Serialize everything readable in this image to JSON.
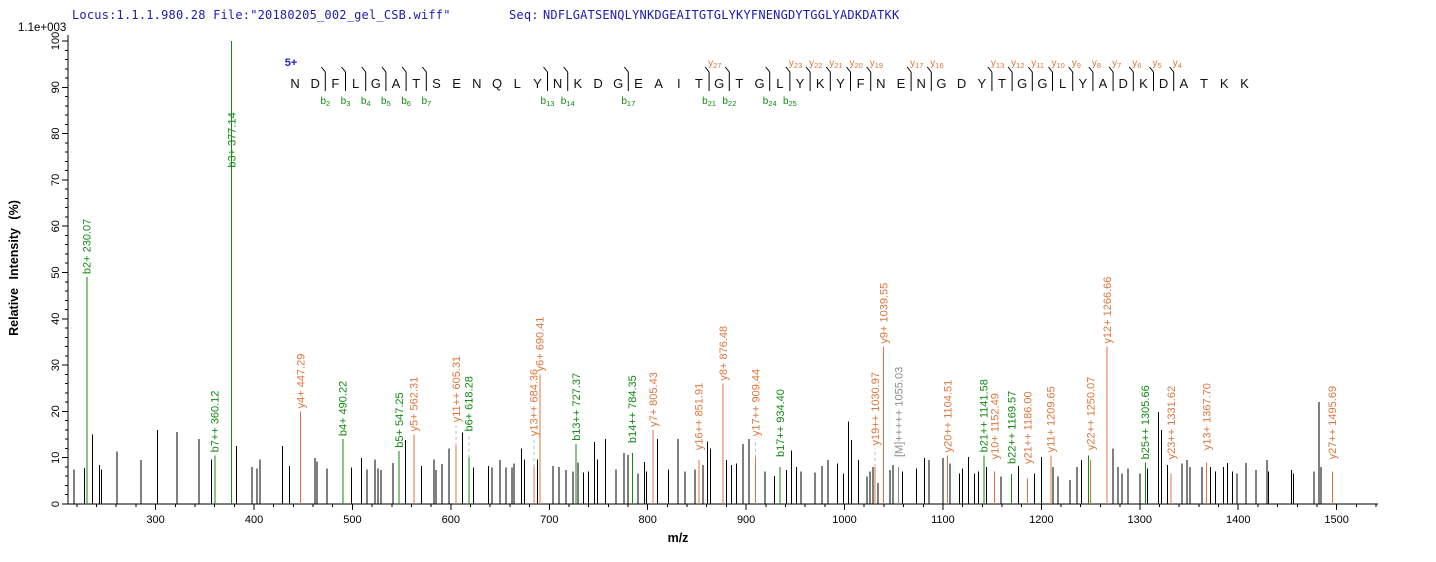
{
  "header": {
    "locus_file": "Locus:1.1.1.980.28 File:\"20180205_002_gel_CSB.wiff\"",
    "seq_label": "Seq:",
    "sequence": "NDFLGATSENQLYNKDGEAITGTGLYKYFNENGDYTGGLYADKDATKK"
  },
  "colors": {
    "b_ion": "#118A11",
    "y_ion": "#E0763C",
    "neutral_label": "#8C8C8C",
    "header_text": "#1C1CB4",
    "precursor": "#2222CC",
    "axis": "#000000",
    "dashed_pointer": "#BDBDBD",
    "peak_black": "#000000",
    "sequence_text": "#111111"
  },
  "chart_data": {
    "type": "bar",
    "variant": "centroid MS/MS mass spectrum (stick plot)",
    "title": "",
    "xlabel": "m/z",
    "ylabel": "Relative  Intensity  (%)",
    "y_scale_note": "1.1e+003",
    "xlim": [
      211,
      1540
    ],
    "ylim": [
      0,
      100
    ],
    "x_ticks": [
      300,
      400,
      500,
      600,
      700,
      800,
      900,
      1000,
      1100,
      1200,
      1300,
      1400,
      1500
    ],
    "x_minor_step": 20,
    "y_ticks": [
      0,
      10,
      20,
      30,
      40,
      50,
      60,
      70,
      80,
      90,
      100
    ],
    "y_minor_step": 2,
    "grid": false,
    "precursor_charge": "5+",
    "peptide": {
      "sequence": "NDFLGATSENQLYNKDGEAITGTGLYKYFNENGDYTGGLYADKDATKK",
      "b_ions": [
        2,
        3,
        4,
        5,
        6,
        7,
        13,
        14,
        17,
        21,
        22,
        24,
        25
      ],
      "y_ions": [
        4,
        5,
        6,
        7,
        8,
        9,
        10,
        11,
        12,
        13,
        16,
        17,
        19,
        20,
        21,
        22,
        23,
        27
      ]
    },
    "labeled_peaks": [
      {
        "mz": 230.07,
        "h": 49,
        "label": "b2+ 230.07",
        "type": "b"
      },
      {
        "mz": 360.12,
        "h": 10.5,
        "label": "b7++ 360.12",
        "type": "b"
      },
      {
        "mz": 377.14,
        "h": 100,
        "label": "b3+ 377.14",
        "type": "b",
        "label_h": 72
      },
      {
        "mz": 447.29,
        "h": 20,
        "label": "y4+ 447.29",
        "type": "y"
      },
      {
        "mz": 490.22,
        "h": 14,
        "label": "b4+ 490.22",
        "type": "b"
      },
      {
        "mz": 547.25,
        "h": 11.5,
        "label": "b5+ 547.25",
        "type": "b"
      },
      {
        "mz": 562.31,
        "h": 15,
        "label": "y5+ 562.31",
        "type": "y"
      },
      {
        "mz": 605.31,
        "h": 12.5,
        "label": "y11++ 605.31",
        "type": "y",
        "label_h": 17,
        "dashed": true
      },
      {
        "mz": 618.28,
        "h": 10,
        "label": "b6+ 618.28",
        "type": "b",
        "label_h": 15,
        "dashed": true
      },
      {
        "mz": 684.36,
        "h": 8,
        "label": "y13++ 684.36",
        "type": "y",
        "label_h": 14,
        "dashed": true
      },
      {
        "mz": 690.41,
        "h": 28,
        "label": "y6+ 690.41",
        "type": "y"
      },
      {
        "mz": 727.37,
        "h": 13,
        "label": "b13++ 727.37",
        "type": "b"
      },
      {
        "mz": 784.35,
        "h": 11,
        "label": "b14++ 784.35",
        "type": "b",
        "label_h": 12.5
      },
      {
        "mz": 805.43,
        "h": 16,
        "label": "y7+ 805.43",
        "type": "y"
      },
      {
        "mz": 851.91,
        "h": 9.5,
        "label": "y16++ 851.91",
        "type": "y",
        "label_h": 11
      },
      {
        "mz": 876.48,
        "h": 26,
        "label": "y8+ 876.48",
        "type": "y"
      },
      {
        "mz": 909.44,
        "h": 10,
        "label": "y17++ 909.44",
        "type": "y",
        "label_h": 14,
        "dashed": true
      },
      {
        "mz": 934.4,
        "h": 8,
        "label": "b17++ 934.40",
        "type": "b",
        "label_h": 9.5
      },
      {
        "mz": 1030.97,
        "h": 8,
        "label": "y19++ 1030.97",
        "type": "y",
        "label_h": 12,
        "dashed": true
      },
      {
        "mz": 1039.55,
        "h": 34,
        "label": "y9+ 1039.55",
        "type": "y"
      },
      {
        "mz": 1055.03,
        "h": 8,
        "label": "[M]+++++ 1055.03",
        "type": "M",
        "label_h": 9.5
      },
      {
        "mz": 1104.51,
        "h": 10.5,
        "label": "y20++ 1104.51",
        "type": "y"
      },
      {
        "mz": 1141.58,
        "h": 10.5,
        "label": "b21++ 1141.58",
        "type": "b"
      },
      {
        "mz": 1152.49,
        "h": 7,
        "label": "y10+ 1152.49",
        "type": "y",
        "label_h": 9
      },
      {
        "mz": 1169.57,
        "h": 6.5,
        "label": "b22++ 1169.57",
        "type": "b",
        "label_h": 8
      },
      {
        "mz": 1186.0,
        "h": 5.5,
        "label": "y21++ 1186.00",
        "type": "y",
        "label_h": 8
      },
      {
        "mz": 1209.65,
        "h": 10.5,
        "label": "y11+ 1209.65",
        "type": "y"
      },
      {
        "mz": 1248.0,
        "h": 10.5,
        "label": "",
        "type": "b"
      },
      {
        "mz": 1250.07,
        "h": 9.5,
        "label": "y22++ 1250.07",
        "type": "y",
        "label_h": 11
      },
      {
        "mz": 1266.66,
        "h": 34,
        "label": "y12+ 1266.66",
        "type": "y"
      },
      {
        "mz": 1305.66,
        "h": 9,
        "label": "b25++ 1305.66",
        "type": "b"
      },
      {
        "mz": 1331.62,
        "h": 6.6,
        "label": "y23++ 1331.62",
        "type": "y",
        "label_h": 9
      },
      {
        "mz": 1367.7,
        "h": 9,
        "label": "y13+ 1367.70",
        "type": "y",
        "label_h": 11
      },
      {
        "mz": 1495.69,
        "h": 7,
        "label": "y27++ 1495.69",
        "type": "y",
        "label_h": 9
      }
    ],
    "unlabeled_peaks": [
      [
        217,
        7.5
      ],
      [
        228,
        7.8
      ],
      [
        236,
        15
      ],
      [
        243,
        8.4
      ],
      [
        245,
        7.5
      ],
      [
        261,
        11.3
      ],
      [
        285,
        9.5
      ],
      [
        302,
        16
      ],
      [
        322,
        15.5
      ],
      [
        344,
        14
      ],
      [
        357,
        9.6
      ],
      [
        382,
        12.5
      ],
      [
        398,
        8
      ],
      [
        403,
        7.7
      ],
      [
        406,
        9.6
      ],
      [
        429,
        12.5
      ],
      [
        436,
        8.2
      ],
      [
        462,
        9.9
      ],
      [
        464,
        9.2
      ],
      [
        474,
        7.7
      ],
      [
        499,
        7.9
      ],
      [
        509,
        9.9
      ],
      [
        515,
        7.5
      ],
      [
        523,
        9.6
      ],
      [
        526,
        7.7
      ],
      [
        529,
        7.3
      ],
      [
        541,
        8.9
      ],
      [
        554,
        13.8
      ],
      [
        570,
        8.2
      ],
      [
        583,
        9.6
      ],
      [
        585,
        7.3
      ],
      [
        591,
        8.6
      ],
      [
        598,
        12
      ],
      [
        612,
        15.4
      ],
      [
        623,
        7.9
      ],
      [
        638,
        8.2
      ],
      [
        642,
        7.9
      ],
      [
        650,
        9.5
      ],
      [
        656,
        7.9
      ],
      [
        662,
        7.9
      ],
      [
        664,
        8.8
      ],
      [
        672,
        12
      ],
      [
        675,
        9.6
      ],
      [
        688,
        9.6
      ],
      [
        704,
        8.2
      ],
      [
        710,
        8
      ],
      [
        717,
        7.3
      ],
      [
        724,
        7
      ],
      [
        729,
        9
      ],
      [
        735,
        6.8
      ],
      [
        740,
        7
      ],
      [
        746,
        13.4
      ],
      [
        749,
        9.6
      ],
      [
        757,
        14
      ],
      [
        768,
        7.5
      ],
      [
        776,
        11
      ],
      [
        780,
        10.6
      ],
      [
        790,
        6.6
      ],
      [
        797,
        9.1
      ],
      [
        799,
        7
      ],
      [
        810,
        14
      ],
      [
        821,
        7.5
      ],
      [
        831,
        14
      ],
      [
        838,
        7
      ],
      [
        848,
        7.4
      ],
      [
        856,
        8.4
      ],
      [
        861,
        13.5
      ],
      [
        864,
        12
      ],
      [
        880,
        9.5
      ],
      [
        885,
        8.4
      ],
      [
        890,
        8.8
      ],
      [
        897,
        13
      ],
      [
        903,
        14
      ],
      [
        919,
        7
      ],
      [
        929,
        6
      ],
      [
        941,
        7.3
      ],
      [
        946,
        11.6
      ],
      [
        951,
        8
      ],
      [
        956,
        7
      ],
      [
        970,
        6.8
      ],
      [
        977,
        8.2
      ],
      [
        983,
        9.5
      ],
      [
        993,
        8.8
      ],
      [
        999,
        6.6
      ],
      [
        1004,
        17.8
      ],
      [
        1007,
        13.8
      ],
      [
        1014,
        9.5
      ],
      [
        1023,
        5.9
      ],
      [
        1026,
        7
      ],
      [
        1029,
        8
      ],
      [
        1034,
        4.5
      ],
      [
        1046,
        7.3
      ],
      [
        1049,
        8.4
      ],
      [
        1059,
        7
      ],
      [
        1073,
        7.7
      ],
      [
        1081,
        9.9
      ],
      [
        1086,
        9.5
      ],
      [
        1100,
        9.9
      ],
      [
        1107,
        8.8
      ],
      [
        1117,
        6.6
      ],
      [
        1120,
        7.7
      ],
      [
        1126,
        10.2
      ],
      [
        1132,
        6.6
      ],
      [
        1136,
        7
      ],
      [
        1144,
        8
      ],
      [
        1159,
        5.9
      ],
      [
        1177,
        8.2
      ],
      [
        1193,
        6.6
      ],
      [
        1200,
        10.2
      ],
      [
        1212,
        8
      ],
      [
        1217,
        5.9
      ],
      [
        1229,
        5.2
      ],
      [
        1236,
        8
      ],
      [
        1241,
        9.5
      ],
      [
        1273,
        12
      ],
      [
        1278,
        8
      ],
      [
        1282,
        6.6
      ],
      [
        1288,
        7.7
      ],
      [
        1300,
        6.6
      ],
      [
        1308,
        7.7
      ],
      [
        1319,
        19.9
      ],
      [
        1322,
        16
      ],
      [
        1328,
        8.4
      ],
      [
        1343,
        8.8
      ],
      [
        1348,
        9.5
      ],
      [
        1351,
        8
      ],
      [
        1363,
        8
      ],
      [
        1372,
        8
      ],
      [
        1377,
        7
      ],
      [
        1385,
        8
      ],
      [
        1389,
        8.9
      ],
      [
        1394,
        7
      ],
      [
        1399,
        6.6
      ],
      [
        1408,
        8.9
      ],
      [
        1418,
        7.3
      ],
      [
        1429,
        9.5
      ],
      [
        1431,
        7
      ],
      [
        1454,
        7.3
      ],
      [
        1456,
        6.6
      ],
      [
        1477,
        7
      ],
      [
        1482,
        22
      ],
      [
        1484,
        8
      ]
    ]
  }
}
